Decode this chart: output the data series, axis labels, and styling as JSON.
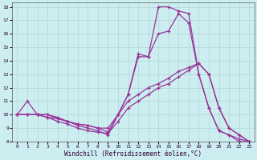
{
  "xlabel": "Windchill (Refroidissement éolien,°C)",
  "ylabel": "",
  "xlim": [
    -0.5,
    23.5
  ],
  "ylim": [
    8,
    18.3
  ],
  "xticks": [
    0,
    1,
    2,
    3,
    4,
    5,
    6,
    7,
    8,
    9,
    10,
    11,
    12,
    13,
    14,
    15,
    16,
    17,
    18,
    19,
    20,
    21,
    22,
    23
  ],
  "yticks": [
    8,
    9,
    10,
    11,
    12,
    13,
    14,
    15,
    16,
    17,
    18
  ],
  "bg_color": "#cceef0",
  "line_color": "#993399",
  "lines": [
    {
      "x": [
        0,
        1,
        2,
        3,
        4,
        5,
        6,
        7,
        8,
        9,
        10,
        11,
        12,
        13,
        14,
        15,
        16,
        17,
        18,
        19,
        20,
        21,
        22,
        23
      ],
      "y": [
        10,
        11,
        10,
        10,
        9.7,
        9.5,
        9.2,
        9.0,
        8.8,
        8.5,
        10.0,
        11.5,
        14.5,
        14.3,
        18.0,
        18.0,
        17.7,
        17.5,
        13.0,
        10.5,
        8.8,
        8.5,
        8.0,
        8.0
      ]
    },
    {
      "x": [
        0,
        1,
        2,
        3,
        4,
        5,
        6,
        7,
        8,
        9,
        10,
        11,
        12,
        13,
        14,
        15,
        16,
        17,
        18,
        19,
        20,
        21,
        22,
        23
      ],
      "y": [
        10,
        10,
        10,
        10,
        9.8,
        9.5,
        9.3,
        9.2,
        9.0,
        8.7,
        10.0,
        11.5,
        14.3,
        14.3,
        16.0,
        16.2,
        17.5,
        16.8,
        13.0,
        10.5,
        8.8,
        8.5,
        8.2,
        8.0
      ]
    },
    {
      "x": [
        0,
        1,
        2,
        3,
        4,
        5,
        6,
        7,
        8,
        9,
        10,
        11,
        12,
        13,
        14,
        15,
        16,
        17,
        18,
        19,
        20,
        21,
        22,
        23
      ],
      "y": [
        10,
        10,
        10,
        9.8,
        9.7,
        9.5,
        9.3,
        9.2,
        9.0,
        9.0,
        10.0,
        11.0,
        11.5,
        12.0,
        12.3,
        12.7,
        13.2,
        13.5,
        13.8,
        13.0,
        10.5,
        9.0,
        8.5,
        8.0
      ]
    },
    {
      "x": [
        0,
        1,
        2,
        3,
        4,
        5,
        6,
        7,
        8,
        9,
        10,
        11,
        12,
        13,
        14,
        15,
        16,
        17,
        18,
        19,
        20,
        21,
        22,
        23
      ],
      "y": [
        10,
        10,
        10,
        9.8,
        9.5,
        9.3,
        9.0,
        8.8,
        8.7,
        8.6,
        9.5,
        10.5,
        11.0,
        11.5,
        12.0,
        12.3,
        12.8,
        13.3,
        13.8,
        13.0,
        10.5,
        9.0,
        8.5,
        8.0
      ]
    }
  ],
  "grid_color": "#aacccc",
  "marker": "+",
  "markersize": 3.5,
  "linewidth": 0.9
}
